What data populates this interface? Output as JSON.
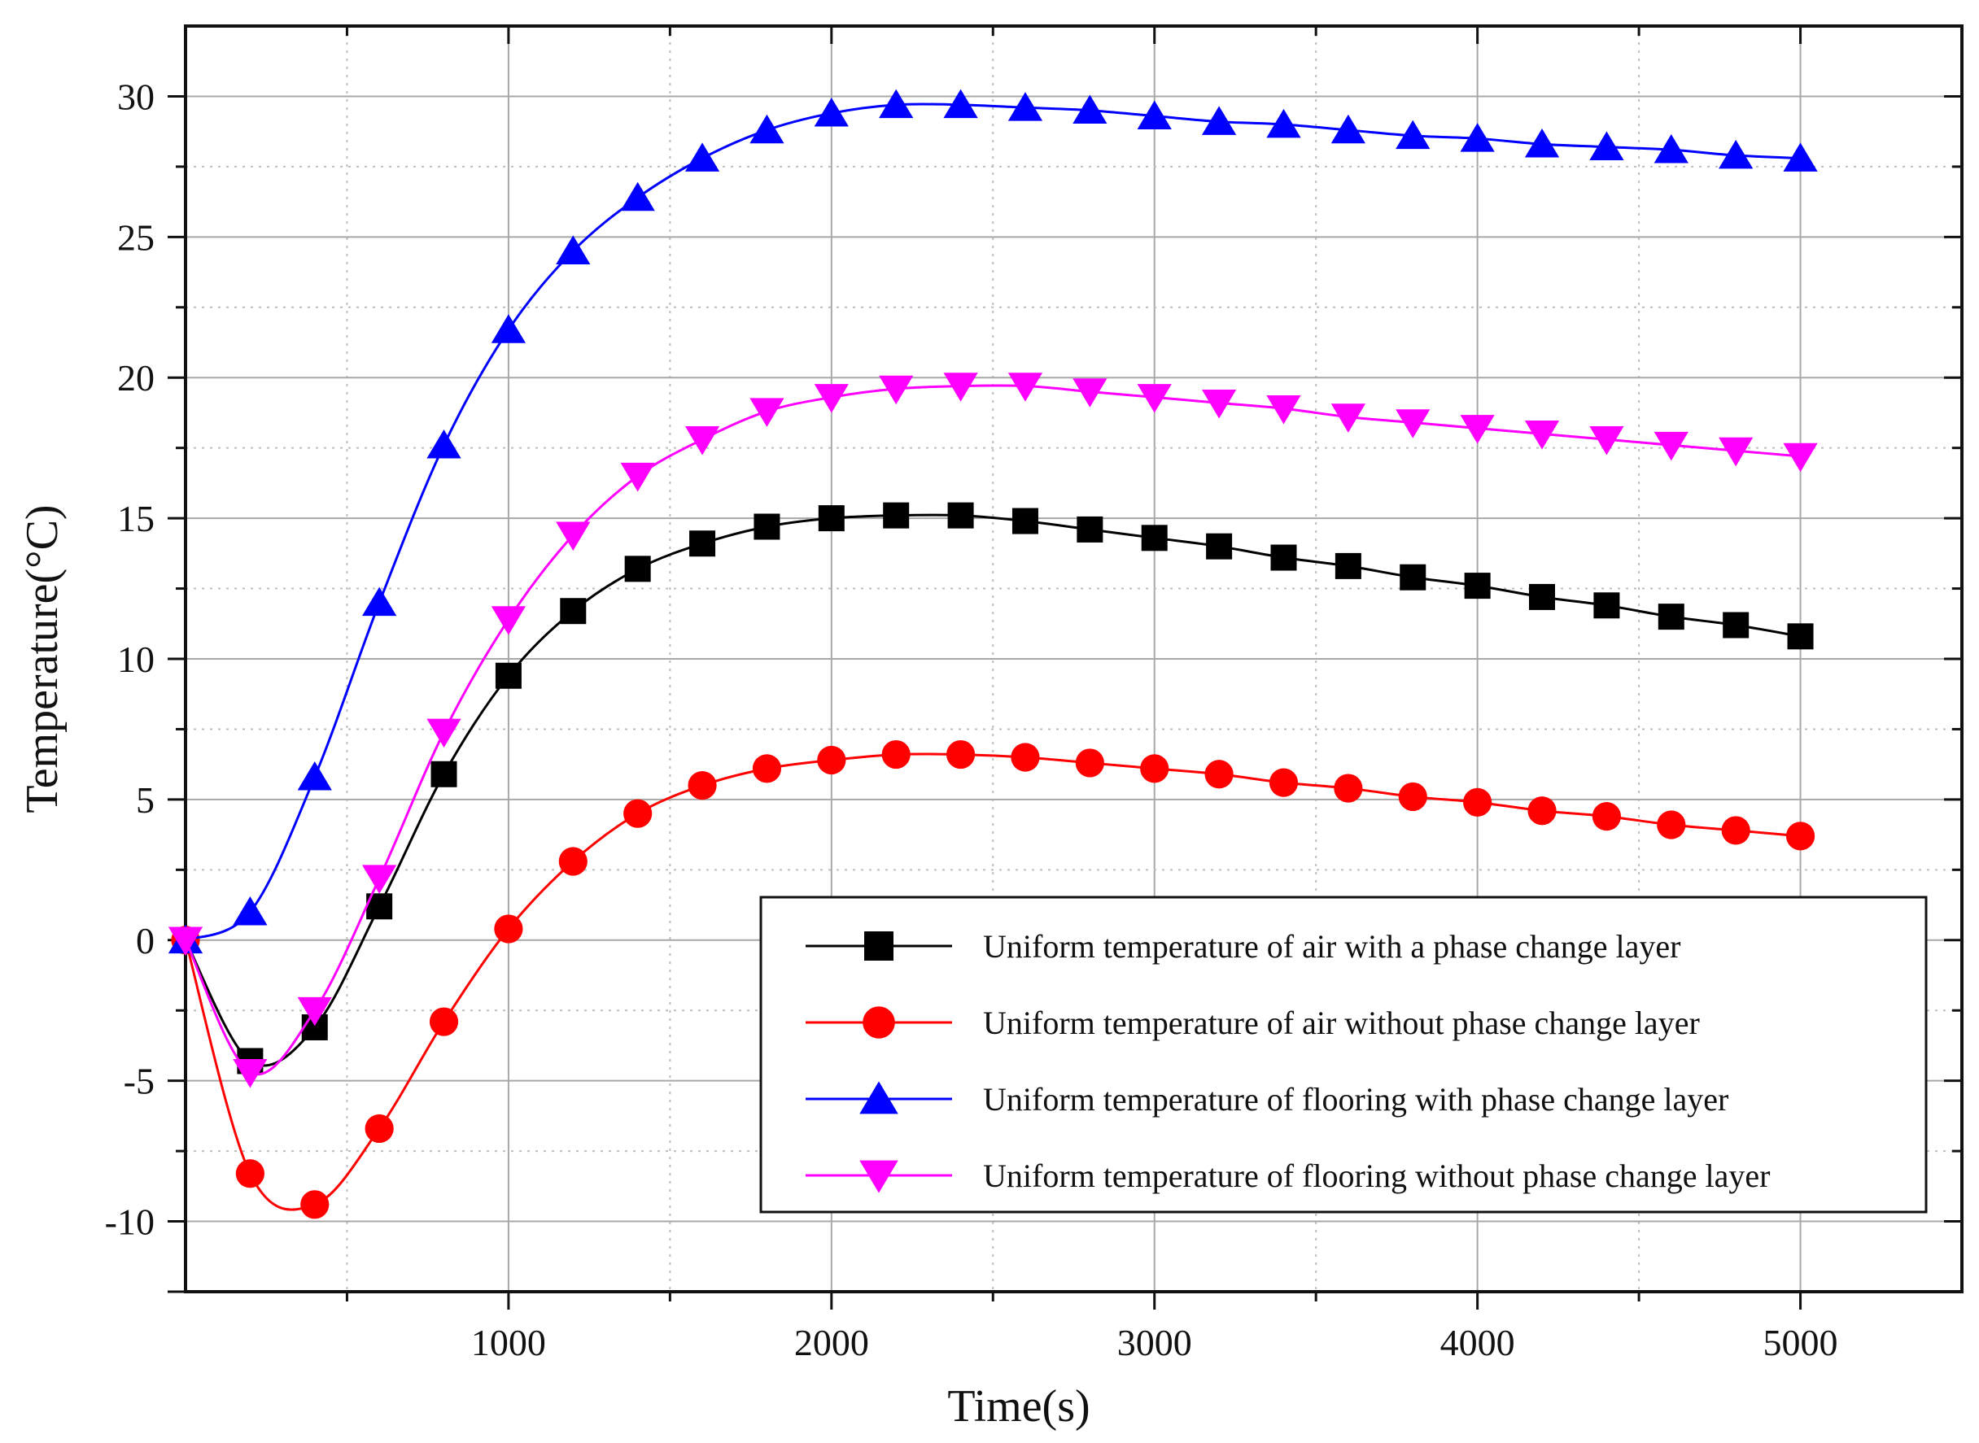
{
  "chart_data": {
    "type": "line",
    "title": "",
    "xlabel": "Time(s)",
    "ylabel": "Temperature(°C)",
    "xlim": [
      0,
      5500
    ],
    "ylim": [
      -12.5,
      32.5
    ],
    "x_major_ticks": [
      1000,
      2000,
      3000,
      4000,
      5000
    ],
    "y_major_ticks": [
      -10,
      -5,
      0,
      5,
      10,
      15,
      20,
      25,
      30
    ],
    "grid": true,
    "legend_position": "bottom-right",
    "x": [
      0,
      200,
      400,
      600,
      800,
      1000,
      1200,
      1400,
      1600,
      1800,
      2000,
      2200,
      2400,
      2600,
      2800,
      3000,
      3200,
      3400,
      3600,
      3800,
      4000,
      4200,
      4400,
      4600,
      4800,
      5000
    ],
    "series": [
      {
        "name": "Uniform temperature of air with a phase change layer",
        "color": "#000000",
        "marker": "square",
        "values": [
          0,
          -4.3,
          -3.1,
          1.2,
          5.9,
          9.4,
          11.7,
          13.2,
          14.1,
          14.7,
          15.0,
          15.1,
          15.1,
          14.9,
          14.6,
          14.3,
          14.0,
          13.6,
          13.3,
          12.9,
          12.6,
          12.2,
          11.9,
          11.5,
          11.2,
          10.8
        ]
      },
      {
        "name": "Uniform temperature of air without phase change layer",
        "color": "#ff0000",
        "marker": "circle",
        "values": [
          0,
          -8.3,
          -9.4,
          -6.7,
          -2.9,
          0.4,
          2.8,
          4.5,
          5.5,
          6.1,
          6.4,
          6.6,
          6.6,
          6.5,
          6.3,
          6.1,
          5.9,
          5.6,
          5.4,
          5.1,
          4.9,
          4.6,
          4.4,
          4.1,
          3.9,
          3.7
        ]
      },
      {
        "name": "Uniform temperature of flooring with phase change layer",
        "color": "#0000ff",
        "marker": "triangle-up",
        "values": [
          0,
          1.0,
          5.8,
          12.0,
          17.6,
          21.7,
          24.5,
          26.4,
          27.8,
          28.8,
          29.4,
          29.7,
          29.7,
          29.6,
          29.5,
          29.3,
          29.1,
          29.0,
          28.8,
          28.6,
          28.5,
          28.3,
          28.2,
          28.1,
          27.9,
          27.8
        ]
      },
      {
        "name": "Uniform temperature of flooring without phase change layer",
        "color": "#ff00ff",
        "marker": "triangle-down",
        "values": [
          0,
          -4.7,
          -2.5,
          2.2,
          7.4,
          11.4,
          14.4,
          16.5,
          17.8,
          18.8,
          19.3,
          19.6,
          19.7,
          19.7,
          19.5,
          19.3,
          19.1,
          18.9,
          18.6,
          18.4,
          18.2,
          18.0,
          17.8,
          17.6,
          17.4,
          17.2
        ]
      }
    ]
  }
}
